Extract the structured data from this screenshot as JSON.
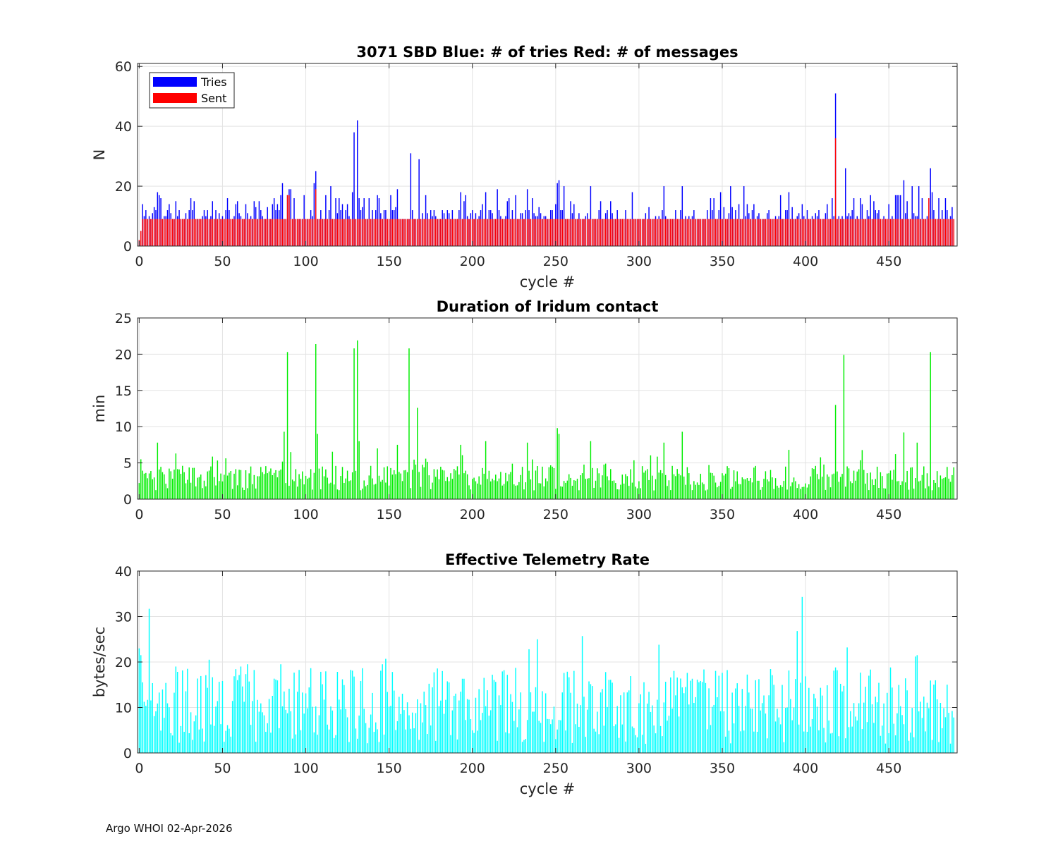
{
  "footer": "Argo WHOI 02-Apr-2026",
  "colors": {
    "tries": "#0000ff",
    "sent": "#ff0000",
    "duration": "#00ee00",
    "rate": "#00ffff",
    "axis": "#262626",
    "grid": "#e3e3e3"
  },
  "chart_data": [
    {
      "id": "sbd",
      "type": "bar",
      "title": "3071 SBD  Blue: # of tries   Red: # of messages",
      "xlabel": "cycle #",
      "ylabel": "N",
      "xlim": [
        -1,
        491
      ],
      "ylim": [
        0,
        61
      ],
      "xticks": [
        0,
        50,
        100,
        150,
        200,
        250,
        300,
        350,
        400,
        450
      ],
      "yticks": [
        0,
        20,
        40,
        60
      ],
      "grid": true,
      "legend": {
        "position": "top-left",
        "entries": [
          "Tries",
          "Sent"
        ]
      },
      "series": [
        {
          "name": "Tries",
          "seed": 3071,
          "base": 9,
          "length": 490,
          "spikes": [
            [
              0,
              2
            ],
            [
              1,
              5
            ],
            [
              2,
              14
            ],
            [
              3,
              10
            ],
            [
              11,
              18
            ],
            [
              22,
              15
            ],
            [
              53,
              16
            ],
            [
              69,
              15
            ],
            [
              81,
              16
            ],
            [
              86,
              21
            ],
            [
              89,
              17
            ],
            [
              90,
              19
            ],
            [
              91,
              19
            ],
            [
              105,
              21
            ],
            [
              106,
              25
            ],
            [
              115,
              20
            ],
            [
              120,
              16
            ],
            [
              128,
              18
            ],
            [
              129,
              38
            ],
            [
              131,
              42
            ],
            [
              143,
              17
            ],
            [
              155,
              19
            ],
            [
              163,
              31
            ],
            [
              168,
              29
            ],
            [
              193,
              18
            ],
            [
              208,
              18
            ],
            [
              215,
              19
            ],
            [
              233,
              19
            ],
            [
              251,
              21
            ],
            [
              252,
              22
            ],
            [
              255,
              20
            ],
            [
              271,
              20
            ],
            [
              277,
              15
            ],
            [
              296,
              18
            ],
            [
              315,
              20
            ],
            [
              326,
              20
            ],
            [
              349,
              18
            ],
            [
              355,
              20
            ],
            [
              363,
              20
            ],
            [
              390,
              18
            ],
            [
              418,
              51
            ],
            [
              424,
              26
            ],
            [
              459,
              22
            ],
            [
              464,
              20
            ],
            [
              468,
              20
            ],
            [
              475,
              26
            ],
            [
              476,
              18
            ]
          ]
        },
        {
          "name": "Sent",
          "seed": 3072,
          "base": 9,
          "length": 490,
          "spikes": [
            [
              0,
              2
            ],
            [
              1,
              5
            ],
            [
              2,
              9
            ],
            [
              3,
              9
            ],
            [
              89,
              17
            ],
            [
              90,
              17
            ],
            [
              106,
              19
            ],
            [
              418,
              36
            ],
            [
              474,
              16
            ]
          ]
        }
      ]
    },
    {
      "id": "duration",
      "type": "bar",
      "title": "Duration of Iridum contact",
      "xlabel": "",
      "ylabel": "min",
      "xlim": [
        -1,
        491
      ],
      "ylim": [
        0,
        25
      ],
      "xticks": [
        0,
        50,
        100,
        150,
        200,
        250,
        300,
        350,
        400,
        450
      ],
      "yticks": [
        0,
        5,
        10,
        15,
        20,
        25
      ],
      "grid": true,
      "series": [
        {
          "name": "Duration",
          "seed": 4242,
          "base": 3.4,
          "length": 490,
          "spikes": [
            [
              1,
              5.5
            ],
            [
              11,
              7.8
            ],
            [
              22,
              6.3
            ],
            [
              87,
              9.3
            ],
            [
              89,
              20.3
            ],
            [
              91,
              6.5
            ],
            [
              106,
              21.4
            ],
            [
              107,
              9
            ],
            [
              129,
              20.8
            ],
            [
              131,
              21.9
            ],
            [
              132,
              8
            ],
            [
              143,
              7
            ],
            [
              155,
              7.5
            ],
            [
              162,
              20.8
            ],
            [
              167,
              12.6
            ],
            [
              193,
              7.5
            ],
            [
              208,
              8
            ],
            [
              233,
              7.8
            ],
            [
              251,
              9.8
            ],
            [
              252,
              9
            ],
            [
              271,
              8
            ],
            [
              315,
              7.8
            ],
            [
              326,
              9.3
            ],
            [
              390,
              6.8
            ],
            [
              418,
              13
            ],
            [
              423,
              19.9
            ],
            [
              459,
              9.2
            ],
            [
              467,
              7.8
            ],
            [
              475,
              20.3
            ]
          ]
        }
      ]
    },
    {
      "id": "rate",
      "type": "bar",
      "title": "Effective Telemetry Rate",
      "xlabel": "cycle #",
      "ylabel": "bytes/sec",
      "xlim": [
        -1,
        491
      ],
      "ylim": [
        0,
        40
      ],
      "xticks": [
        0,
        50,
        100,
        150,
        200,
        250,
        300,
        350,
        400,
        450
      ],
      "yticks": [
        0,
        10,
        20,
        30,
        40
      ],
      "grid": true,
      "series": [
        {
          "name": "Rate",
          "seed": 7777,
          "base": 11.5,
          "length": 490,
          "spikes": [
            [
              0,
              23
            ],
            [
              1,
              21.5
            ],
            [
              6,
              31.7
            ],
            [
              22,
              19
            ],
            [
              42,
              20.5
            ],
            [
              61,
              19
            ],
            [
              65,
              19.5
            ],
            [
              85,
              19.5
            ],
            [
              146,
              19.5
            ],
            [
              148,
              20.7
            ],
            [
              234,
              22.8
            ],
            [
              239,
              25
            ],
            [
              266,
              25.7
            ],
            [
              312,
              23.8
            ],
            [
              395,
              26.8
            ],
            [
              398,
              34.3
            ],
            [
              425,
              23.2
            ],
            [
              466,
              21.2
            ],
            [
              467,
              21.5
            ]
          ]
        }
      ]
    }
  ]
}
